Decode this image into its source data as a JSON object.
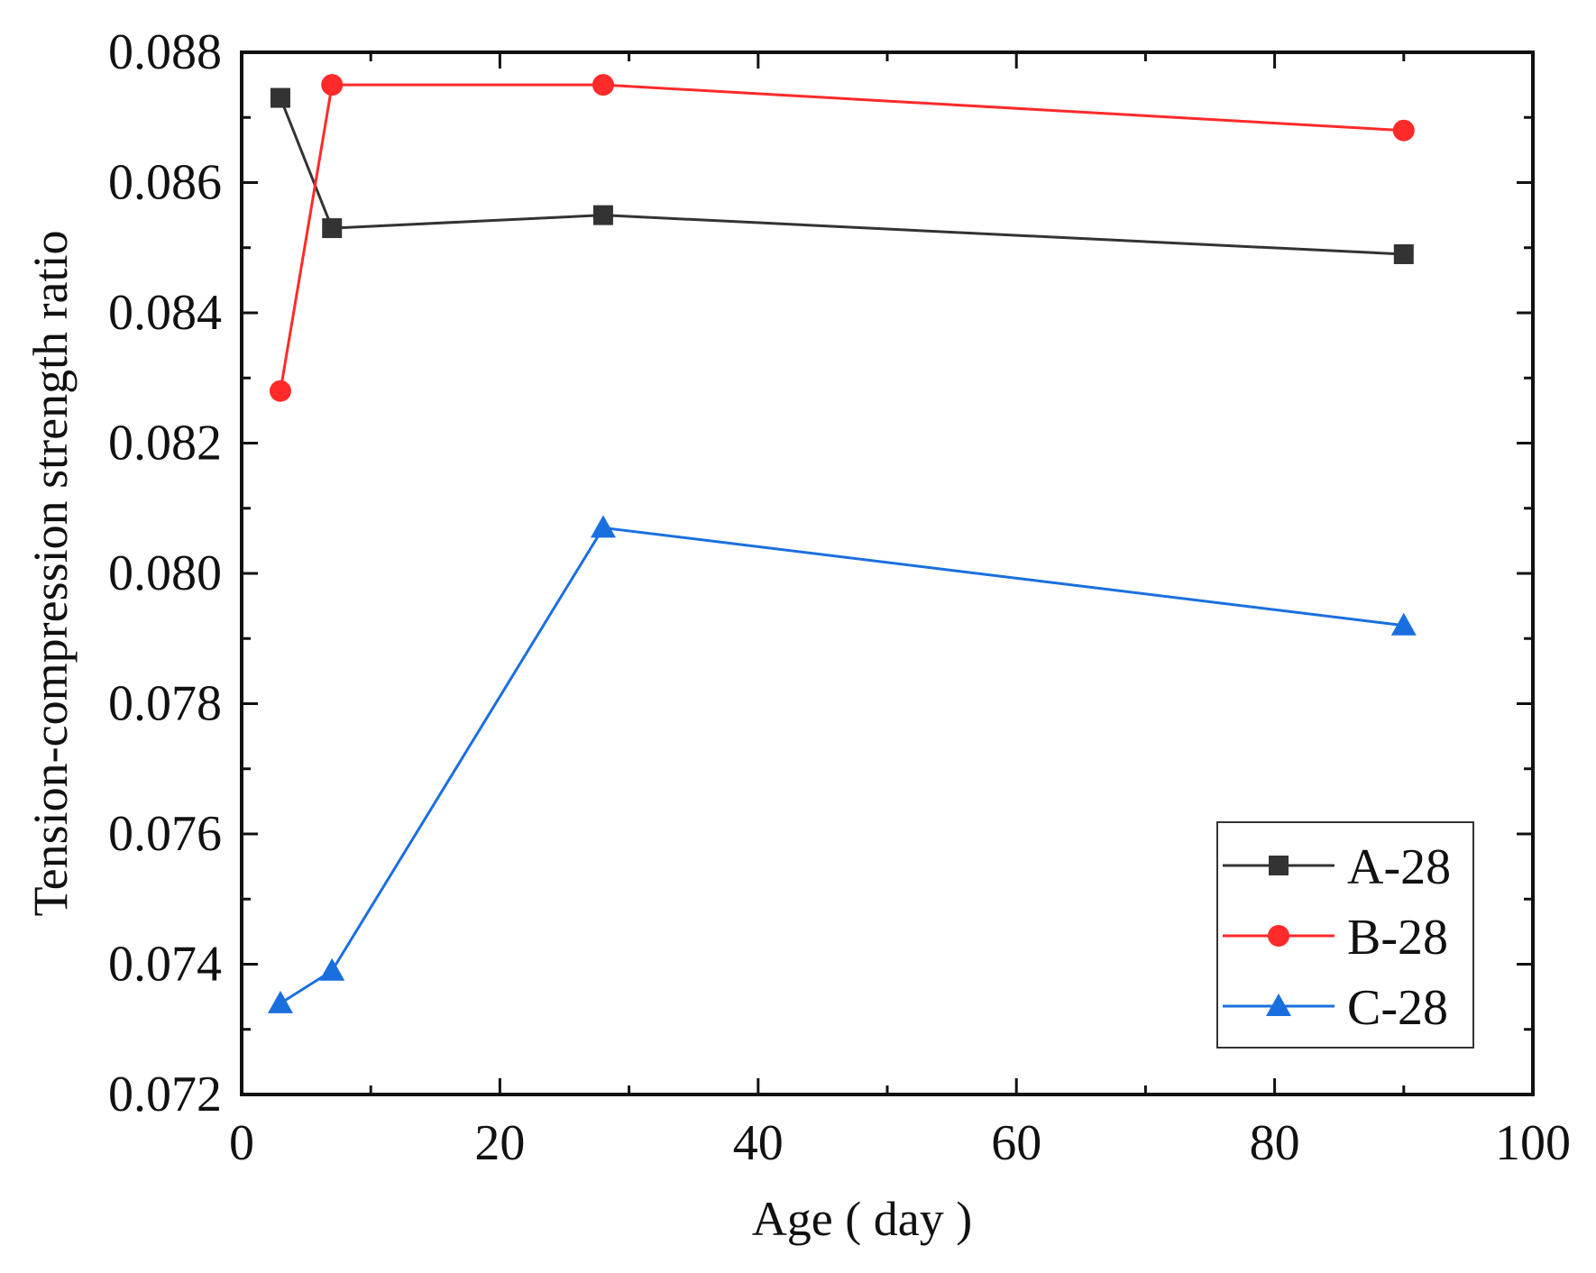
{
  "chart_data": {
    "type": "line",
    "title": "",
    "xlabel": "Age ( day )",
    "ylabel": "Tension-compression strength ratio",
    "xlim": [
      0,
      100
    ],
    "ylim": [
      0.072,
      0.088
    ],
    "x_ticks": [
      0,
      20,
      40,
      60,
      80,
      100
    ],
    "x_tick_labels": [
      "0",
      "20",
      "40",
      "60",
      "80",
      "100"
    ],
    "y_ticks": [
      0.072,
      0.074,
      0.076,
      0.078,
      0.08,
      0.082,
      0.084,
      0.086,
      0.088
    ],
    "y_tick_labels": [
      "0.072",
      "0.074",
      "0.076",
      "0.078",
      "0.080",
      "0.082",
      "0.084",
      "0.086",
      "0.088"
    ],
    "grid": false,
    "legend_position": "bottom-right",
    "x": [
      3,
      7,
      28,
      90
    ],
    "series": [
      {
        "name": "A-28",
        "color": "#333333",
        "marker": "square",
        "values": [
          0.0873,
          0.0853,
          0.0855,
          0.0849
        ]
      },
      {
        "name": "B-28",
        "color": "#ff2a2a",
        "marker": "circle",
        "values": [
          0.0828,
          0.0875,
          0.0875,
          0.0868
        ]
      },
      {
        "name": "C-28",
        "color": "#1a6fdf",
        "marker": "triangle",
        "values": [
          0.0734,
          0.0739,
          0.0807,
          0.0792
        ]
      }
    ]
  }
}
